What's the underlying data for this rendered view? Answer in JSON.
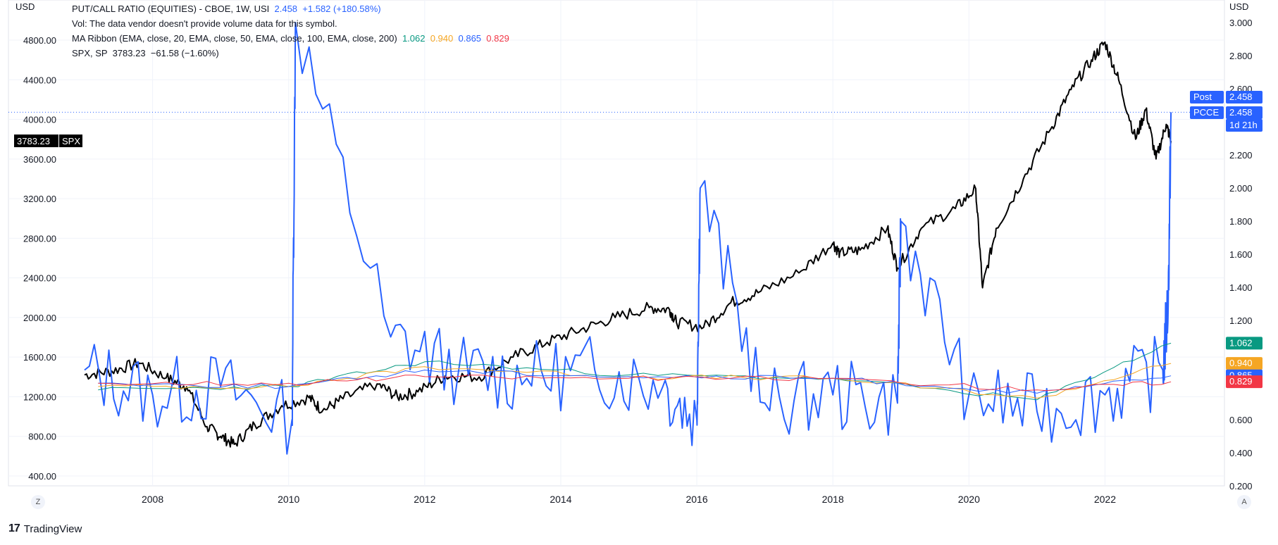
{
  "legend": {
    "line1_title": "PUT/CALL RATIO (EQUITIES) - CBOE, 1W, USI",
    "line1_value": "2.458",
    "line1_change": "+1.582 (+180.58%)",
    "line2": "Vol: The data vendor doesn't provide volume data for this symbol.",
    "line3_title": "MA Ribbon (EMA, close, 20, EMA, close, 50, EMA, close, 100, EMA, close, 200)",
    "line3_v1": "1.062",
    "line3_v2": "0.940",
    "line3_v3": "0.865",
    "line3_v4": "0.829",
    "line4_title": "SPX, SP",
    "line4_value": "3783.23",
    "line4_change": "−61.58 (−1.60%)"
  },
  "footer": {
    "brand": "TradingView",
    "logo": "17"
  },
  "buttons": {
    "left": "Z",
    "right": "A"
  },
  "chart_data": {
    "type": "line",
    "x_ticks": [
      "2008",
      "2010",
      "2012",
      "2014",
      "2016",
      "2018",
      "2020",
      "2022"
    ],
    "x_range": [
      2006.5,
      2023.5
    ],
    "left_axis": {
      "unit": "USD",
      "ticks": [
        "4800.00",
        "4400.00",
        "4000.00",
        "3600.00",
        "3200.00",
        "2800.00",
        "2400.00",
        "2000.00",
        "1600.00",
        "1200.00",
        "800.00",
        "400.00"
      ],
      "range": [
        300,
        5150
      ]
    },
    "right_axis": {
      "unit": "USD",
      "ticks": [
        "3.000",
        "2.800",
        "2.600",
        "2.200",
        "2.000",
        "1.800",
        "1.600",
        "1.400",
        "1.200",
        "0.600",
        "0.400",
        "0.200"
      ],
      "range": [
        0.2,
        3.0
      ]
    },
    "series": [
      {
        "name": "SPX",
        "axis": "left",
        "color": "#000000",
        "x": [
          2007.0,
          2007.4,
          2007.8,
          2008.2,
          2008.5,
          2008.8,
          2009.0,
          2009.2,
          2009.5,
          2009.9,
          2010.3,
          2010.5,
          2010.8,
          2011.3,
          2011.6,
          2011.9,
          2012.3,
          2012.8,
          2013.3,
          2013.8,
          2014.3,
          2014.8,
          2015.3,
          2015.6,
          2015.7,
          2016.1,
          2016.5,
          2016.9,
          2017.5,
          2018.0,
          2018.1,
          2018.4,
          2018.8,
          2018.95,
          2019.3,
          2019.8,
          2020.1,
          2020.2,
          2020.4,
          2020.8,
          2021.2,
          2021.5,
          2021.8,
          2022.0,
          2022.2,
          2022.45,
          2022.6,
          2022.75,
          2022.9,
          2022.97
        ],
        "y": [
          1420,
          1460,
          1540,
          1390,
          1300,
          900,
          800,
          720,
          920,
          1110,
          1190,
          1060,
          1180,
          1330,
          1200,
          1250,
          1410,
          1400,
          1600,
          1750,
          1880,
          2000,
          2100,
          2080,
          1950,
          1900,
          2150,
          2250,
          2450,
          2750,
          2650,
          2680,
          2900,
          2500,
          2900,
          3100,
          3300,
          2300,
          2900,
          3400,
          3900,
          4300,
          4600,
          4780,
          4400,
          3800,
          4100,
          3600,
          3950,
          3783
        ]
      },
      {
        "name": "PCCE",
        "axis": "right",
        "color": "#2962ff",
        "x": [
          2007.0,
          2008.0,
          2009.0,
          2010.05,
          2010.1,
          2011.5,
          2012.5,
          2013.5,
          2014.5,
          2015.5,
          2016.0,
          2016.05,
          2017.0,
          2018.0,
          2018.95,
          2019.0,
          2020.0,
          2021.0,
          2022.0,
          2022.85,
          2022.93,
          2022.97
        ],
        "y": [
          0.9,
          0.75,
          0.8,
          0.6,
          3.0,
          1.1,
          0.9,
          0.85,
          0.9,
          0.8,
          0.6,
          2.0,
          0.7,
          0.75,
          0.7,
          1.8,
          0.75,
          0.65,
          0.75,
          0.9,
          1.3,
          2.458
        ]
      },
      {
        "name": "EMA 20",
        "axis": "right",
        "color": "#089981",
        "x": [
          2007.2,
          2010,
          2012,
          2015,
          2018,
          2021,
          2022.97
        ],
        "y": [
          0.78,
          0.8,
          0.95,
          0.87,
          0.85,
          0.72,
          1.062
        ]
      },
      {
        "name": "EMA 50",
        "axis": "right",
        "color": "#f5a623",
        "x": [
          2007.2,
          2010,
          2012,
          2015,
          2018,
          2021,
          2022.97
        ],
        "y": [
          0.8,
          0.8,
          0.92,
          0.86,
          0.85,
          0.73,
          0.94
        ]
      },
      {
        "name": "EMA 100",
        "axis": "right",
        "color": "#2962ff",
        "x": [
          2007.2,
          2010,
          2012,
          2015,
          2018,
          2021,
          2022.97
        ],
        "y": [
          0.82,
          0.8,
          0.9,
          0.86,
          0.85,
          0.76,
          0.865
        ]
      },
      {
        "name": "EMA 200",
        "axis": "right",
        "color": "#f23645",
        "x": [
          2007.2,
          2010,
          2012,
          2015,
          2018,
          2021,
          2022.97
        ],
        "y": [
          0.82,
          0.82,
          0.86,
          0.85,
          0.85,
          0.78,
          0.829
        ]
      }
    ],
    "labels": {
      "spx_left": {
        "value": "3783.23",
        "name": "SPX"
      },
      "post": {
        "name": "Post",
        "value": "2.458"
      },
      "pcce": {
        "name": "PCCE",
        "value": "2.458",
        "countdown": "1d 21h"
      },
      "ribbon": [
        {
          "value": "1.062",
          "color": "#089981"
        },
        {
          "value": "0.940",
          "color": "#f5a623"
        },
        {
          "value": "0.865",
          "color": "#2962ff"
        },
        {
          "value": "0.829",
          "color": "#f23645"
        }
      ]
    },
    "grid": true,
    "reference_line": 2.458
  }
}
